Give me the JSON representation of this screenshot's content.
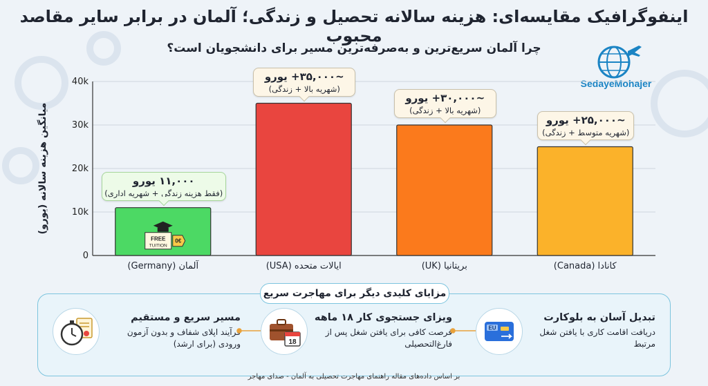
{
  "title": "اینفوگرافیک مقایسه‌ای: هزینه سالانه تحصیل و زندگی؛ آلمان در برابر سایر مقاصد محبوب",
  "subtitle": "چرا آلمان سریع‌ترین و به‌صرفه‌ترین مسیر برای دانشجویان است؟",
  "brand": {
    "name": "SedayeMohajer"
  },
  "chart_data": {
    "type": "bar",
    "categories": [
      "آلمان (Germany)",
      "ایالات متحده (USA)",
      "بریتانیا (UK)",
      "کانادا (Canada)"
    ],
    "values": [
      11000,
      35000,
      30000,
      25000
    ],
    "colors": [
      "#4cd964",
      "#e9453f",
      "#fb7a1c",
      "#fbb22a"
    ],
    "ylabel": "میانگین هزینه سالانه (یورو)",
    "ylim": [
      0,
      40000
    ],
    "yticks": [
      0,
      10000,
      20000,
      30000,
      40000
    ],
    "ytick_labels": [
      "0",
      "10k",
      "20k",
      "30k",
      "40k"
    ],
    "grid": true,
    "annotations": [
      {
        "value": "۱۱,۰۰۰ یورو",
        "sub": "(فقط هزینه زندگی + شهریه اداری)"
      },
      {
        "value": "~۳۵,۰۰۰+ یورو",
        "sub": "(شهریه بالا + زندگی)"
      },
      {
        "value": "~۳۰,۰۰۰+ یورو",
        "sub": "(شهریه بالا + زندگی)"
      },
      {
        "value": "~۲۵,۰۰۰+ یورو",
        "sub": "(شهریه متوسط + زندگی)"
      }
    ],
    "bar_badge": {
      "line1": "FREE",
      "line2": "TUITION",
      "price": "0€"
    }
  },
  "features": {
    "title": "مزایای کلیدی دیگر برای مهاجرت سریع",
    "items": [
      {
        "heading": "تبدیل آسان به بلوکارت",
        "desc": "دریافت اقامت کاری با یافتن شغل مرتبط",
        "icon": "eu-blue-card-icon",
        "card_text": "EU"
      },
      {
        "heading": "ویزای جستجوی کار ۱۸ ماهه",
        "desc": "فرصت کافی برای یافتن شغل پس از فارغ‌التحصیلی",
        "icon": "briefcase-calendar-icon",
        "calendar_day": "18"
      },
      {
        "heading": "مسیر سریع و مستقیم",
        "desc": "فرآیند اپلای شفاف و بدون آزمون ورودی (برای ارشد)",
        "icon": "stopwatch-certificate-icon"
      }
    ]
  },
  "footer": "بر اساس داده‌های مقاله راهنمای مهاجرت تحصیلی به آلمان - صدای مهاجر"
}
